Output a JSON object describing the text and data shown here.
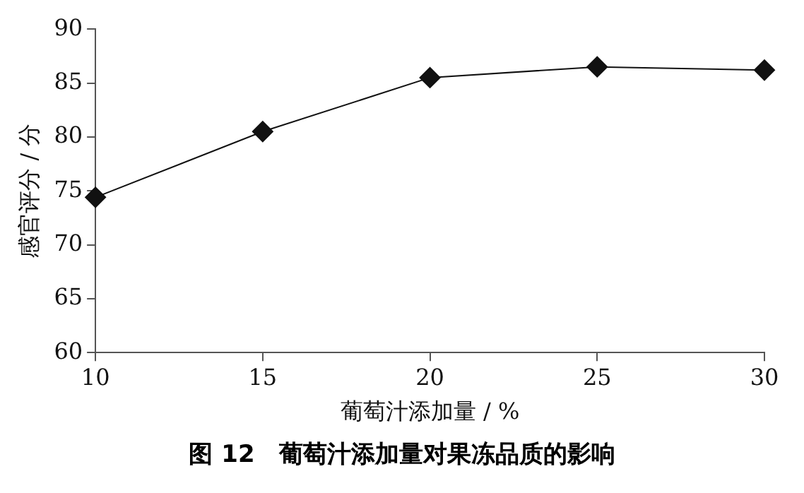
{
  "chart_data": {
    "type": "line",
    "xlabel": "葡萄汁添加量 / %",
    "ylabel": "感官评分 / 分",
    "annotations": [
      "图 12　葡萄汁添加量对果冻品质的影响"
    ],
    "x": [
      10,
      15,
      20,
      25,
      30
    ],
    "series": [
      {
        "color": "#111111",
        "values": [
          74.4,
          80.5,
          85.5,
          86.5,
          86.2
        ]
      }
    ],
    "xlim": [
      10,
      30
    ],
    "xticks": [
      10,
      15,
      20,
      25,
      30
    ],
    "ylim": [
      60,
      90
    ],
    "yticks": [
      60,
      65,
      70,
      75,
      80,
      85,
      90
    ],
    "grid": false,
    "legend": false,
    "marker": "diamond",
    "line_style": "solid"
  }
}
